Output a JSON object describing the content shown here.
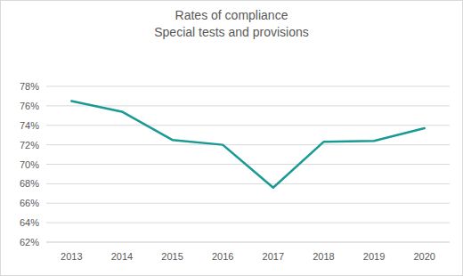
{
  "chart_data": {
    "type": "line",
    "title": "Rates of compliance",
    "subtitle": "Special tests and provisions",
    "categories": [
      "2013",
      "2014",
      "2015",
      "2016",
      "2017",
      "2018",
      "2019",
      "2020"
    ],
    "values": [
      76.5,
      75.4,
      72.5,
      72.0,
      67.6,
      72.3,
      72.4,
      73.7
    ],
    "color": "#1a9a94",
    "ylim": [
      62,
      78
    ],
    "yticks": [
      {
        "value": 62,
        "label": "62%"
      },
      {
        "value": 64,
        "label": "64%"
      },
      {
        "value": 66,
        "label": "66%"
      },
      {
        "value": 68,
        "label": "68%"
      },
      {
        "value": 70,
        "label": "70%"
      },
      {
        "value": 72,
        "label": "72%"
      },
      {
        "value": 74,
        "label": "74%"
      },
      {
        "value": 76,
        "label": "76%"
      },
      {
        "value": 78,
        "label": "78%"
      }
    ],
    "grid": true
  }
}
